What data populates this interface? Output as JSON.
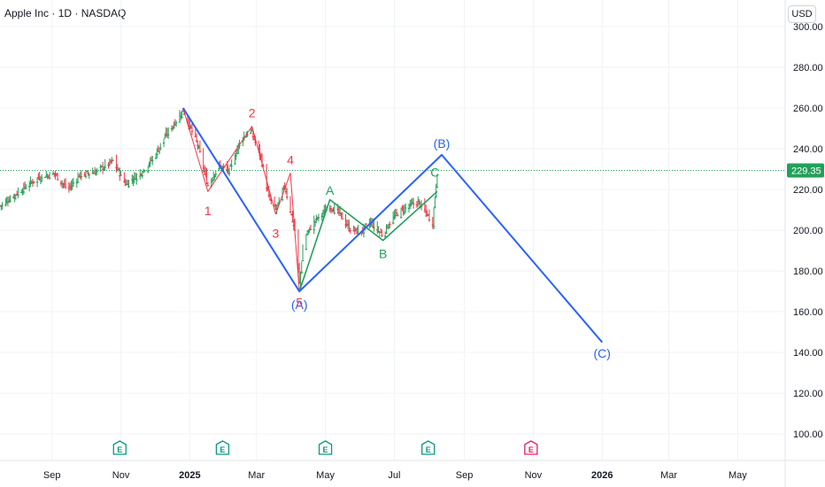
{
  "header": {
    "title": "Apple Inc · 1D · NASDAQ",
    "currency": "USD"
  },
  "colors": {
    "wave_main": "#2962ff",
    "wave_sub": "#f23645",
    "wave_corr": "#22a05a",
    "candle_up": "#22a05a",
    "candle_down": "#f23645",
    "last_price_bg": "#22a05a",
    "earnings": "#089981",
    "earnings_future": "#e91e63"
  },
  "chart_data": {
    "type": "line",
    "symbol": "AAPL",
    "timeframe": "1D",
    "last_price": 229.35,
    "last_price_label": "229.35",
    "y_ticks": [
      "300.00",
      "280.00",
      "260.00",
      "240.00",
      "220.00",
      "200.00",
      "180.00",
      "160.00",
      "140.00",
      "120.00",
      "100.00"
    ],
    "y_tick_values": [
      300,
      280,
      260,
      240,
      220,
      200,
      180,
      160,
      140,
      120,
      100
    ],
    "ylim": [
      87,
      313
    ],
    "x_ticks": [
      "Sep",
      "Nov",
      "2025",
      "Mar",
      "May",
      "Jul",
      "Sep",
      "Nov",
      "2026",
      "Mar",
      "May"
    ],
    "x_tick_dates": [
      "2024-09-01",
      "2024-11-01",
      "2025-01-01",
      "2025-03-01",
      "2025-05-01",
      "2025-07-01",
      "2025-09-01",
      "2025-11-01",
      "2026-01-01",
      "2026-03-01",
      "2026-05-01"
    ],
    "xlim": [
      "2024-07-17",
      "2026-06-12"
    ],
    "bold_x_ticks": [
      "2025",
      "2026"
    ],
    "price_series": [
      {
        "date": "2024-07-17",
        "close": 212
      },
      {
        "date": "2024-08-05",
        "close": 220
      },
      {
        "date": "2024-08-20",
        "close": 226
      },
      {
        "date": "2024-09-03",
        "close": 228
      },
      {
        "date": "2024-09-15",
        "close": 220
      },
      {
        "date": "2024-09-25",
        "close": 227
      },
      {
        "date": "2024-10-10",
        "close": 229
      },
      {
        "date": "2024-10-25",
        "close": 234
      },
      {
        "date": "2024-11-05",
        "close": 223
      },
      {
        "date": "2024-11-18",
        "close": 228
      },
      {
        "date": "2024-11-29",
        "close": 235
      },
      {
        "date": "2024-12-10",
        "close": 246
      },
      {
        "date": "2024-12-20",
        "close": 254
      },
      {
        "date": "2024-12-26",
        "close": 259
      },
      {
        "date": "2025-01-08",
        "close": 242
      },
      {
        "date": "2025-01-17",
        "close": 222
      },
      {
        "date": "2025-01-26",
        "close": 232
      },
      {
        "date": "2025-02-05",
        "close": 229
      },
      {
        "date": "2025-02-15",
        "close": 245
      },
      {
        "date": "2025-02-24",
        "close": 249
      },
      {
        "date": "2025-03-05",
        "close": 236
      },
      {
        "date": "2025-03-12",
        "close": 216
      },
      {
        "date": "2025-03-18",
        "close": 210
      },
      {
        "date": "2025-03-26",
        "close": 222
      },
      {
        "date": "2025-04-04",
        "close": 200
      },
      {
        "date": "2025-04-08",
        "close": 174
      },
      {
        "date": "2025-04-12",
        "close": 196
      },
      {
        "date": "2025-04-22",
        "close": 205
      },
      {
        "date": "2025-05-05",
        "close": 212
      },
      {
        "date": "2025-05-14",
        "close": 208
      },
      {
        "date": "2025-05-22",
        "close": 201
      },
      {
        "date": "2025-06-01",
        "close": 199
      },
      {
        "date": "2025-06-10",
        "close": 204
      },
      {
        "date": "2025-06-20",
        "close": 198
      },
      {
        "date": "2025-07-01",
        "close": 207
      },
      {
        "date": "2025-07-10",
        "close": 211
      },
      {
        "date": "2025-07-22",
        "close": 214
      },
      {
        "date": "2025-07-30",
        "close": 208
      },
      {
        "date": "2025-08-04",
        "close": 204
      },
      {
        "date": "2025-08-08",
        "close": 229
      }
    ],
    "elliott_main": {
      "points": [
        {
          "date": "2024-12-26",
          "price": 260
        },
        {
          "date": "2025-04-08",
          "price": 170
        },
        {
          "date": "2025-08-12",
          "price": 237
        },
        {
          "date": "2026-01-01",
          "price": 145
        }
      ],
      "labels": [
        {
          "text": "(A)",
          "date": "2025-04-08",
          "price": 163
        },
        {
          "text": "(B)",
          "date": "2025-08-12",
          "price": 242
        },
        {
          "text": "(C)",
          "date": "2026-01-01",
          "price": 139
        }
      ]
    },
    "elliott_sub": {
      "points": [
        {
          "date": "2024-12-26",
          "price": 260
        },
        {
          "date": "2025-01-17",
          "price": 219
        },
        {
          "date": "2025-02-25",
          "price": 251
        },
        {
          "date": "2025-03-18",
          "price": 208
        },
        {
          "date": "2025-03-31",
          "price": 228
        },
        {
          "date": "2025-04-08",
          "price": 170
        }
      ],
      "labels": [
        {
          "text": "1",
          "date": "2025-01-17",
          "price": 209
        },
        {
          "text": "2",
          "date": "2025-02-25",
          "price": 257
        },
        {
          "text": "3",
          "date": "2025-03-18",
          "price": 198
        },
        {
          "text": "4",
          "date": "2025-03-31",
          "price": 234
        },
        {
          "text": "5",
          "date": "2025-04-08",
          "price": 164
        }
      ]
    },
    "elliott_corr": {
      "points": [
        {
          "date": "2025-04-08",
          "price": 170
        },
        {
          "date": "2025-05-05",
          "price": 215
        },
        {
          "date": "2025-06-21",
          "price": 195
        },
        {
          "date": "2025-08-08",
          "price": 219
        }
      ],
      "labels": [
        {
          "text": "A",
          "date": "2025-05-05",
          "price": 219
        },
        {
          "text": "B",
          "date": "2025-06-21",
          "price": 188
        },
        {
          "text": "C",
          "date": "2025-08-06",
          "price": 228
        }
      ]
    },
    "earnings_events": [
      {
        "label": "E",
        "date": "2024-10-31",
        "future": false
      },
      {
        "label": "E",
        "date": "2025-01-30",
        "future": false
      },
      {
        "label": "E",
        "date": "2025-05-01",
        "future": false
      },
      {
        "label": "E",
        "date": "2025-07-31",
        "future": false
      },
      {
        "label": "E",
        "date": "2025-10-30",
        "future": true
      }
    ]
  }
}
